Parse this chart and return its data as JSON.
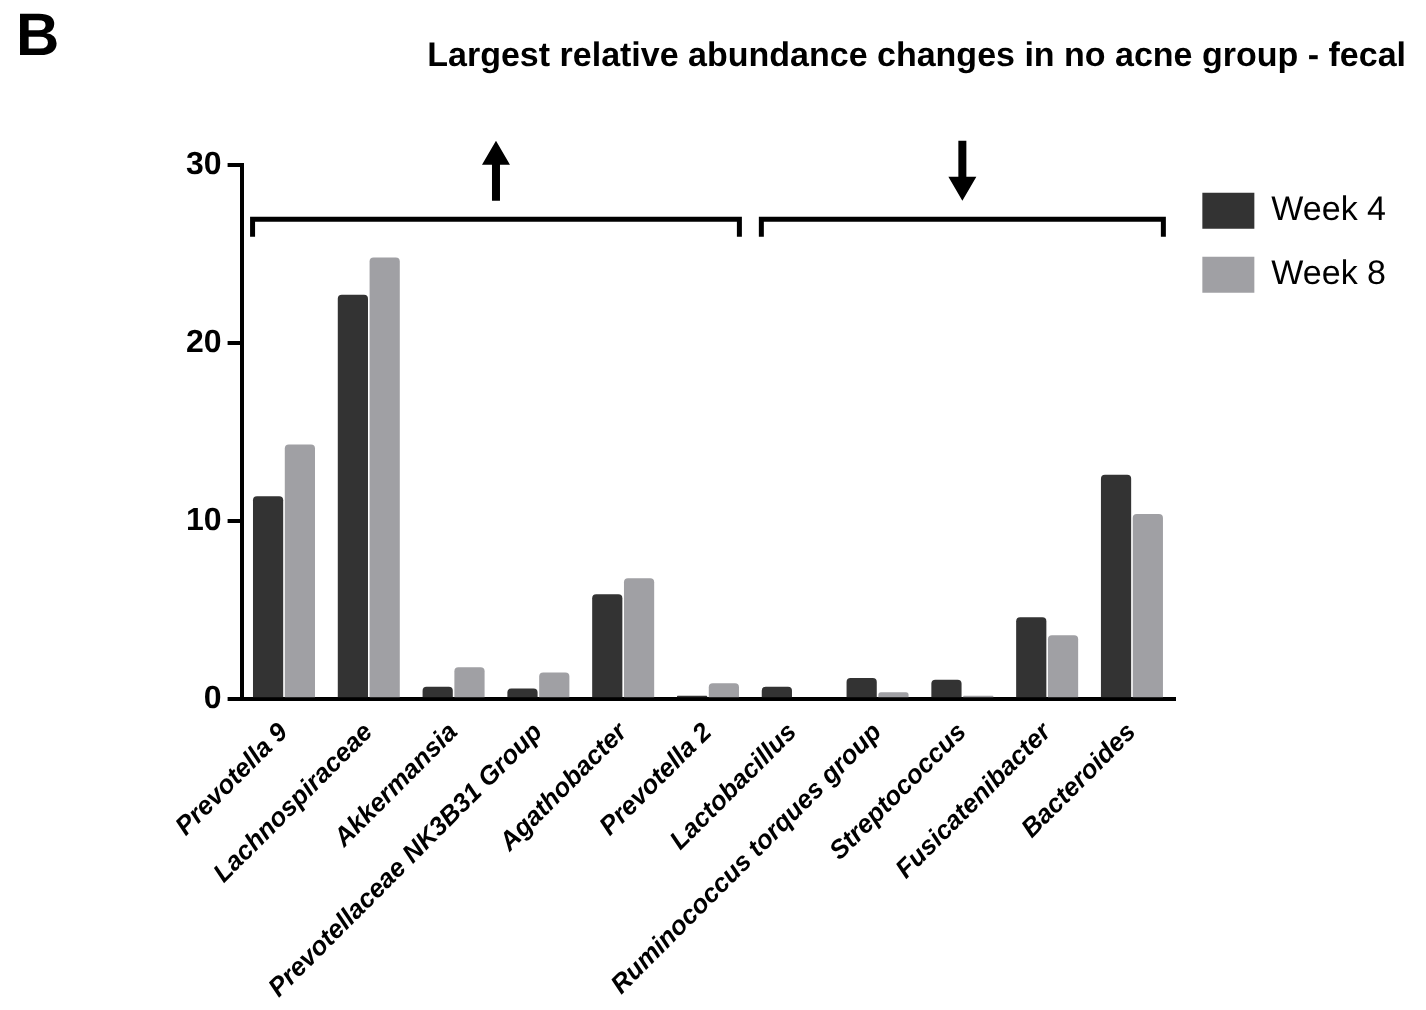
{
  "chart_data": {
    "type": "bar",
    "title": "Largest relative abundance changes in no acne group - fecal",
    "annotations": [
      "B"
    ],
    "categories": [
      "Prevotella 9",
      "Lachnospiraceae",
      "Akkermansia",
      "Prevotellaceae NK3B31 Group",
      "Agathobacter",
      "Prevotella 2",
      "Lactobacillus",
      "Ruminococcus torques group",
      "Streptococcus",
      "Fusicatenibacter",
      "Bacteroides"
    ],
    "series": [
      {
        "name": "Week 4",
        "color": "#333333",
        "values": [
          11.4,
          22.7,
          0.7,
          0.6,
          5.9,
          0.2,
          0.7,
          1.2,
          1.1,
          4.6,
          12.6
        ]
      },
      {
        "name": "Week 8",
        "color": "#a0a0a4",
        "values": [
          14.3,
          24.8,
          1.8,
          1.5,
          6.8,
          0.9,
          null,
          0.4,
          0.2,
          3.6,
          10.4
        ]
      }
    ],
    "ylim": [
      0,
      30
    ],
    "yticks": [
      0,
      10,
      20,
      30
    ],
    "grid": false,
    "legend": "top right"
  }
}
